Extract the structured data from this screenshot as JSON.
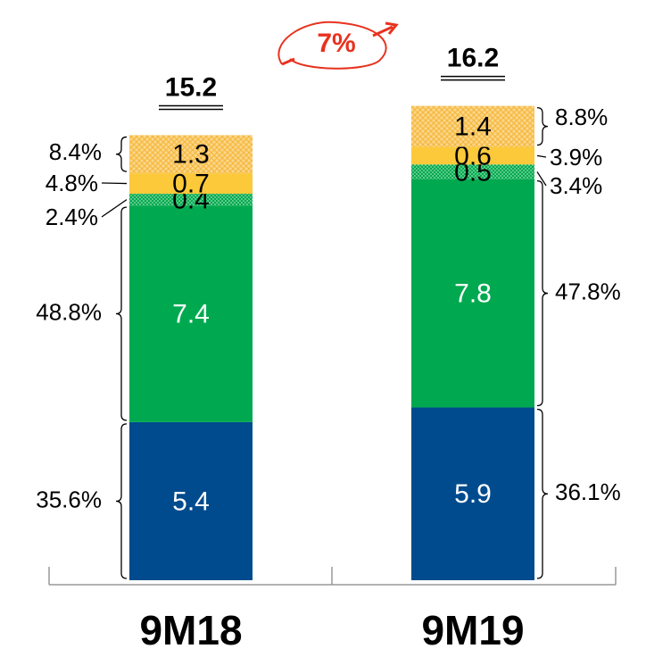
{
  "chart_data": {
    "type": "stacked_bar",
    "categories": [
      "9M18",
      "9M19"
    ],
    "totals": [
      15.2,
      16.2
    ],
    "annotation": "7%",
    "series": [
      {
        "color": "#004b8d",
        "values": [
          5.4,
          5.9
        ],
        "shares": [
          35.6,
          36.1
        ],
        "share_labels": [
          "35.6%",
          "36.1%"
        ],
        "label_color": "#ffffff"
      },
      {
        "color": "#00a94f",
        "values": [
          7.4,
          7.8
        ],
        "shares": [
          48.8,
          47.8
        ],
        "share_labels": [
          "48.8%",
          "47.8%"
        ],
        "label_color": "#ffffff"
      },
      {
        "color": "#00a94f",
        "pattern": "dots",
        "values": [
          0.4,
          0.5
        ],
        "shares": [
          2.4,
          3.4
        ],
        "share_labels": [
          "2.4%",
          "3.4%"
        ],
        "label_color": "#000000"
      },
      {
        "color": "#fcc93a",
        "values": [
          0.7,
          0.6
        ],
        "shares": [
          4.8,
          3.9
        ],
        "share_labels": [
          "4.8%",
          "3.9%"
        ],
        "label_color": "#000000"
      },
      {
        "color": "#fbd68a",
        "pattern": "crosshatch",
        "values": [
          1.3,
          1.4
        ],
        "shares": [
          8.4,
          8.8
        ],
        "share_labels": [
          "8.4%",
          "8.8%"
        ],
        "label_color": "#000000"
      }
    ]
  }
}
